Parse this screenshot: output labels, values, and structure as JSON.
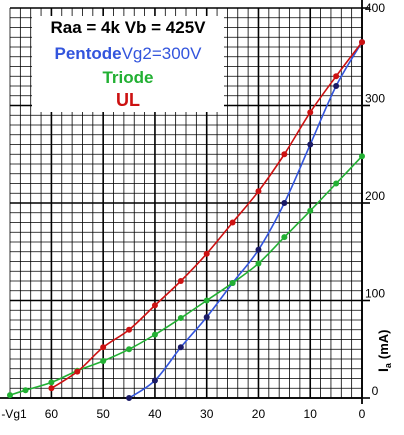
{
  "legend": {
    "title": "Raa = 4k  Vb = 425V",
    "pentode_label": "Pentode",
    "pentode_suffix": "Vg2=300V",
    "triode_label": "Triode",
    "ul_label": "UL"
  },
  "chart_data": {
    "type": "line",
    "x_ticks": [
      "-Vg1",
      "60",
      "50",
      "40",
      "30",
      "20",
      "10",
      "0"
    ],
    "y_ticks": [
      "0",
      "100",
      "200",
      "300",
      "400"
    ],
    "ylabel_main": "I",
    "ylabel_sub": "a",
    "ylabel_unit": "(mA)",
    "xlim": [
      0,
      68
    ],
    "ylim": [
      0,
      400
    ],
    "x_reversed": true,
    "grid": true,
    "series": [
      {
        "name": "Pentode",
        "color": "#3355dd",
        "dot_color": "#1a1a66",
        "points": [
          [
            45,
            0
          ],
          [
            40,
            18
          ],
          [
            35,
            52
          ],
          [
            30,
            83
          ],
          [
            25,
            118
          ],
          [
            20,
            152
          ],
          [
            15,
            200
          ],
          [
            10,
            260
          ],
          [
            5,
            320
          ],
          [
            0,
            365
          ]
        ]
      },
      {
        "name": "Triode",
        "color": "#22b033",
        "dot_color": "#22b033",
        "points": [
          [
            68,
            3
          ],
          [
            65,
            8
          ],
          [
            60,
            16
          ],
          [
            55,
            28
          ],
          [
            50,
            38
          ],
          [
            45,
            50
          ],
          [
            40,
            65
          ],
          [
            35,
            82
          ],
          [
            30,
            100
          ],
          [
            25,
            118
          ],
          [
            20,
            138
          ],
          [
            15,
            165
          ],
          [
            10,
            192
          ],
          [
            5,
            220
          ],
          [
            0,
            248
          ]
        ]
      },
      {
        "name": "UL",
        "color": "#cc1111",
        "dot_color": "#cc1111",
        "points": [
          [
            60,
            10
          ],
          [
            55,
            27
          ],
          [
            50,
            52
          ],
          [
            45,
            70
          ],
          [
            40,
            95
          ],
          [
            35,
            120
          ],
          [
            30,
            148
          ],
          [
            25,
            180
          ],
          [
            20,
            212
          ],
          [
            15,
            250
          ],
          [
            10,
            293
          ],
          [
            5,
            330
          ],
          [
            0,
            365
          ]
        ]
      }
    ]
  }
}
